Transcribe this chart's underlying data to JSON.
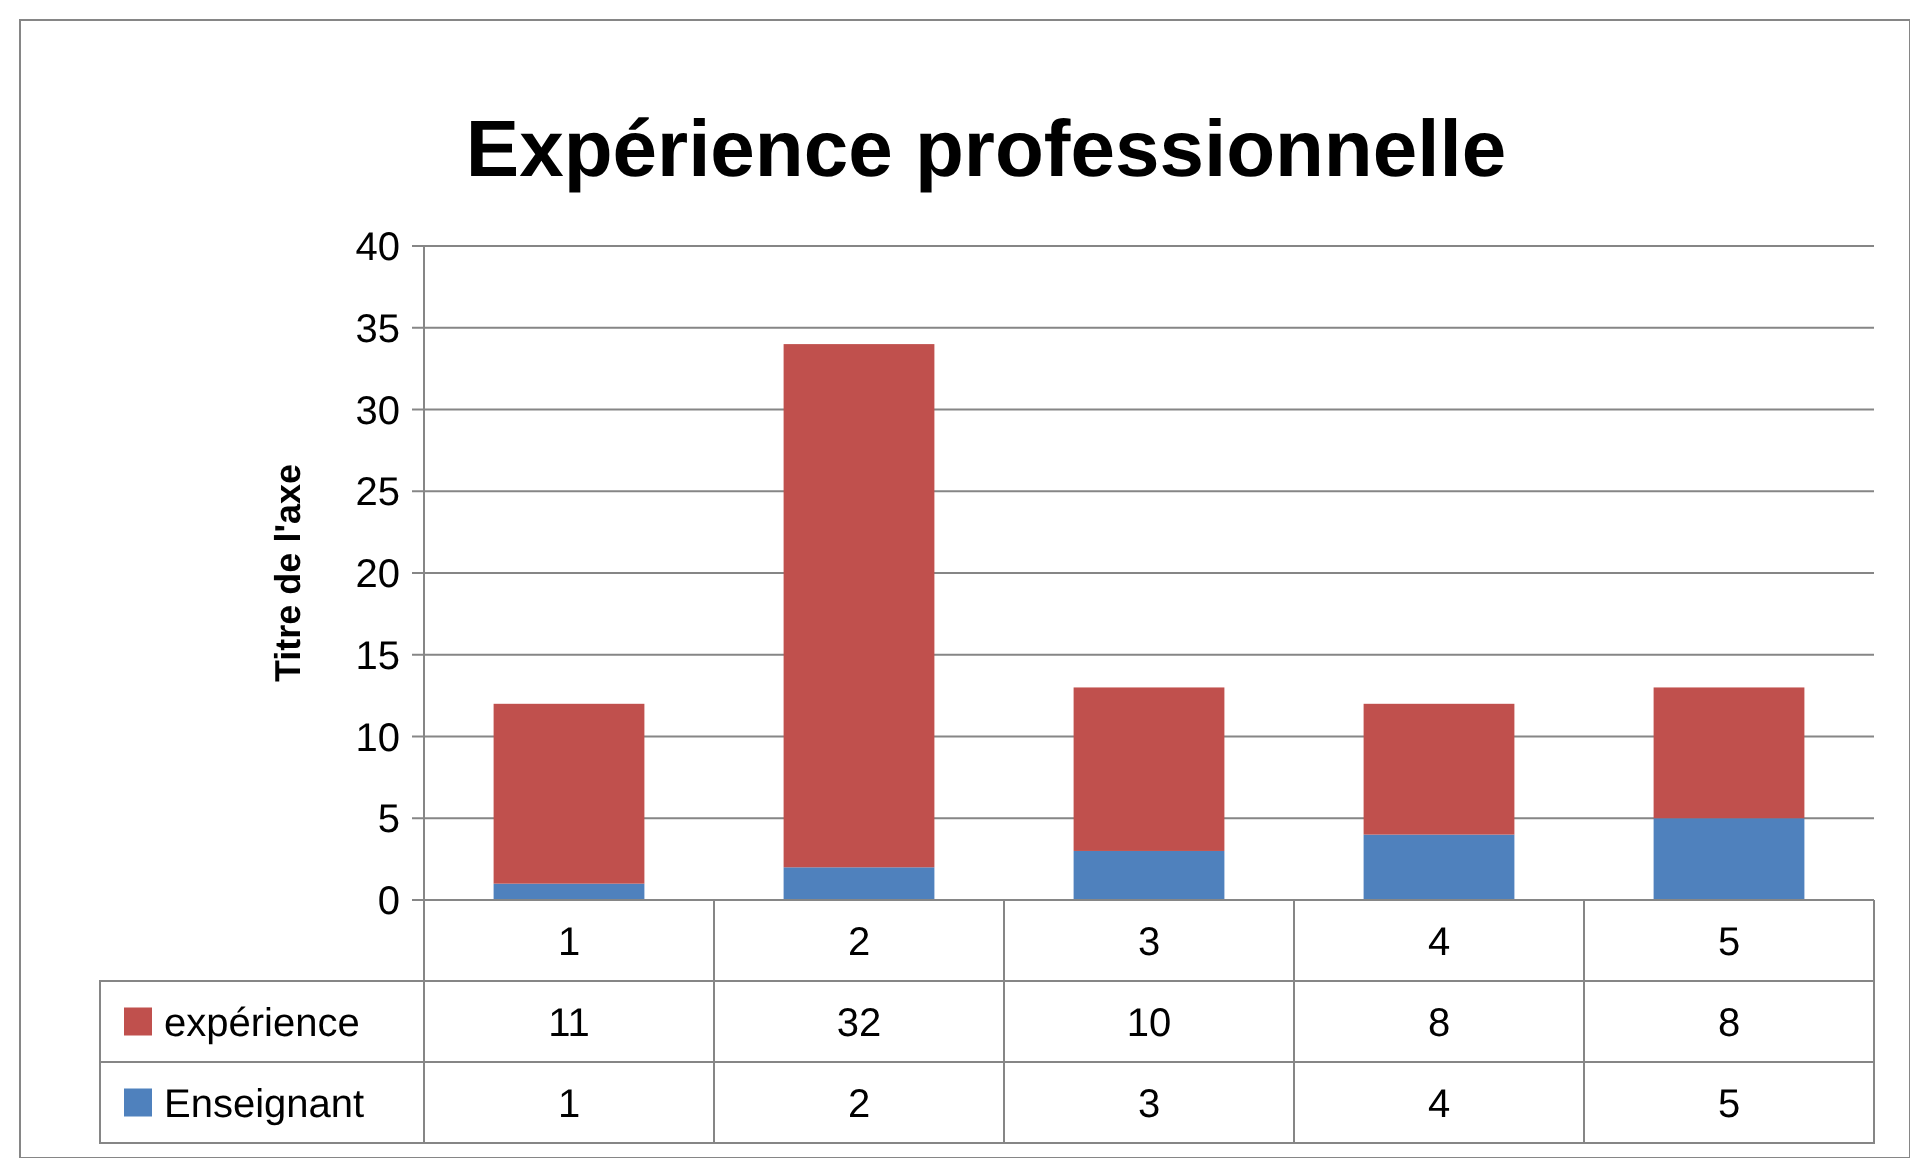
{
  "chart_data": {
    "type": "bar",
    "title": "Expérience professionnelle",
    "ylabel": "Titre de l'axe",
    "categories": [
      "1",
      "2",
      "3",
      "4",
      "5"
    ],
    "stacked": true,
    "series": [
      {
        "name": "Enseignant",
        "color": "#4f81bd",
        "values": [
          1,
          2,
          3,
          4,
          5
        ]
      },
      {
        "name": "expérience",
        "color": "#c0504d",
        "values": [
          11,
          32,
          10,
          8,
          8
        ]
      }
    ],
    "ylim": [
      0,
      40
    ],
    "yticks": [
      0,
      5,
      10,
      15,
      20,
      25,
      30,
      35,
      40
    ],
    "grid": "y",
    "legend": "bottom",
    "data_labels": true
  }
}
